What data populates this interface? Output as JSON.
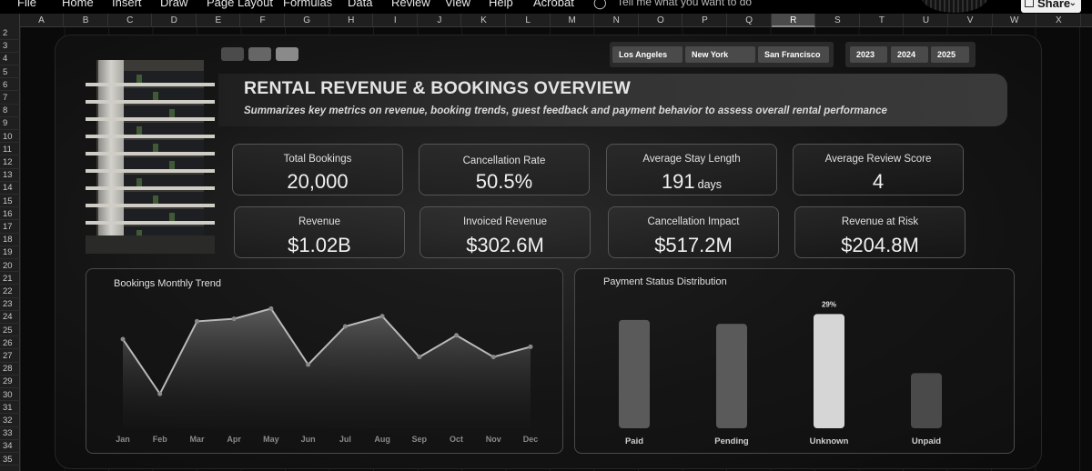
{
  "ribbon": {
    "tabs": [
      "File",
      "Home",
      "Insert",
      "Draw",
      "Page Layout",
      "Formulas",
      "Data",
      "Review",
      "View",
      "Help",
      "Acrobat"
    ],
    "search_placeholder": "Tell me what you want to do",
    "share_label": "Share"
  },
  "sheet": {
    "columns": [
      "A",
      "B",
      "C",
      "D",
      "E",
      "F",
      "G",
      "H",
      "I",
      "J",
      "K",
      "L",
      "M",
      "N",
      "O",
      "P",
      "Q",
      "R",
      "S",
      "T",
      "U",
      "V",
      "W",
      "X"
    ],
    "selected_column": "R",
    "rows": [
      "2",
      "3",
      "4",
      "5",
      "6",
      "7",
      "8",
      "9",
      "10",
      "11",
      "12",
      "13",
      "14",
      "15",
      "16",
      "17",
      "18",
      "19",
      "20",
      "21",
      "22",
      "23",
      "24",
      "25",
      "26",
      "27",
      "28",
      "29",
      "30",
      "31",
      "32",
      "33",
      "34",
      "35"
    ]
  },
  "filters": {
    "cities": [
      "Los Angeles",
      "New York",
      "San Francisco"
    ],
    "years": [
      "2023",
      "2024",
      "2025"
    ]
  },
  "header": {
    "title": "RENTAL REVENUE & BOOKINGS OVERVIEW",
    "subtitle": "Summarizes key metrics on revenue, booking trends, guest feedback and payment behavior to assess overall rental performance"
  },
  "kpis": {
    "total_bookings": {
      "label": "Total Bookings",
      "value": "20,000"
    },
    "cancellation_rate": {
      "label": "Cancellation Rate",
      "value": "50.5%"
    },
    "avg_stay": {
      "label": "Average Stay Length",
      "value": "191",
      "unit": "days"
    },
    "avg_review": {
      "label": "Average Review Score",
      "value": "4"
    },
    "revenue": {
      "label": "Revenue",
      "value": "$1.02B"
    },
    "invoiced_revenue": {
      "label": "Invoiced Revenue",
      "value": "$302.6M"
    },
    "cancellation_impact": {
      "label": "Cancellation  Impact",
      "value": "$517.2M"
    },
    "revenue_at_risk": {
      "label": "Revenue at Risk",
      "value": "$204.8M"
    }
  },
  "chart_data": [
    {
      "type": "area",
      "title": "Bookings Monthly Trend",
      "categories": [
        "Jan",
        "Feb",
        "Mar",
        "Apr",
        "May",
        "Jun",
        "Jul",
        "Aug",
        "Sep",
        "Oct",
        "Nov",
        "Dec"
      ],
      "values": [
        1700,
        1270,
        1840,
        1860,
        1940,
        1500,
        1800,
        1880,
        1560,
        1730,
        1560,
        1640
      ],
      "ylim": [
        1000,
        2000
      ],
      "grid": false,
      "colors": {
        "line": "#b9b9b9",
        "fill_top": "#5e5e5e",
        "fill_bottom": "#1c1c1c",
        "marker": "#8a8a8a"
      }
    },
    {
      "type": "bar",
      "title": "Payment Status Distribution",
      "categories": [
        "Paid",
        "Pending",
        "Unknown",
        "Unpaid"
      ],
      "values": [
        0.275,
        0.265,
        0.29,
        0.14
      ],
      "data_labels": [
        "",
        "",
        "29%",
        ""
      ],
      "highlight": "Unknown",
      "ylim": [
        0,
        0.3
      ],
      "colors": {
        "bar": "#5a5a5a",
        "bar_dark": "#4a4a4a",
        "highlight": "#d6d6d6"
      }
    }
  ]
}
